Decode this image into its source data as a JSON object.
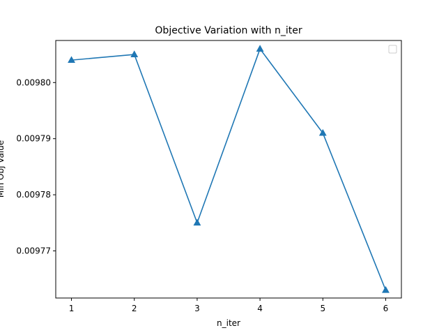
{
  "chart_data": {
    "type": "line",
    "title": "Objective Variation with n_iter",
    "xlabel": "n_iter",
    "ylabel": "Min Obj Value",
    "x": [
      1,
      2,
      3,
      4,
      5,
      6
    ],
    "series": [
      {
        "values": [
          0.009804,
          0.009805,
          0.009775,
          0.009806,
          0.009791,
          0.009763
        ],
        "color": "#1f77b4",
        "marker": "triangle-up"
      }
    ],
    "x_ticks": [
      "1",
      "2",
      "3",
      "4",
      "5",
      "6"
    ],
    "y_ticks": [
      "0.00977",
      "0.00978",
      "0.00979",
      "0.00980"
    ],
    "y_tick_values": [
      0.00977,
      0.00978,
      0.00979,
      0.0098
    ],
    "xlim": [
      0.75,
      6.25
    ],
    "ylim": [
      0.0097616,
      0.0098075
    ],
    "grid": false,
    "legend": {
      "placement": "top-right",
      "entries": []
    }
  }
}
